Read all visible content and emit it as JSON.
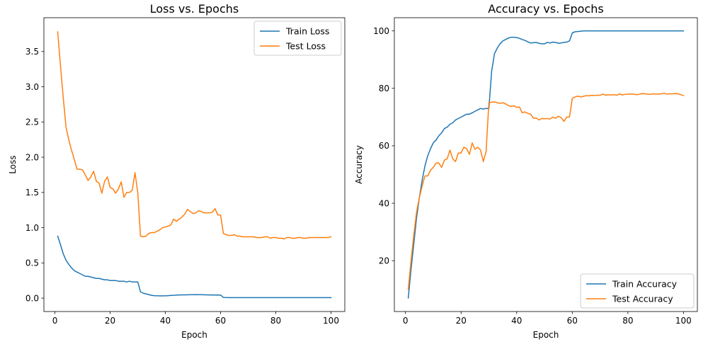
{
  "chart_data": [
    {
      "type": "line",
      "title": "Loss vs. Epochs",
      "xlabel": "Epoch",
      "ylabel": "Loss",
      "xlim": [
        -4,
        105
      ],
      "ylim": [
        -0.19,
        3.98
      ],
      "xticks": [
        0,
        20,
        40,
        60,
        80,
        100
      ],
      "yticks": [
        0.0,
        0.5,
        1.0,
        1.5,
        2.0,
        2.5,
        3.0,
        3.5
      ],
      "ytick_labels": [
        "0.0",
        "0.5",
        "1.0",
        "1.5",
        "2.0",
        "2.5",
        "3.0",
        "3.5"
      ],
      "legend_position": "top-right",
      "grid": false,
      "series": [
        {
          "name": "Train Loss",
          "color": "#1f77b4",
          "x": [
            1,
            2,
            3,
            4,
            5,
            6,
            7,
            8,
            9,
            10,
            11,
            12,
            13,
            14,
            15,
            16,
            17,
            18,
            19,
            20,
            21,
            22,
            23,
            24,
            25,
            26,
            27,
            28,
            29,
            30,
            31,
            32,
            33,
            34,
            35,
            36,
            37,
            38,
            39,
            40,
            41,
            42,
            43,
            44,
            45,
            46,
            47,
            48,
            49,
            50,
            51,
            52,
            53,
            54,
            55,
            56,
            57,
            58,
            59,
            60,
            61,
            62,
            63,
            64,
            65,
            66,
            67,
            68,
            69,
            70,
            71,
            72,
            73,
            74,
            75,
            76,
            77,
            78,
            79,
            80,
            81,
            82,
            83,
            84,
            85,
            86,
            87,
            88,
            89,
            90,
            91,
            92,
            93,
            94,
            95,
            96,
            97,
            98,
            99,
            100
          ],
          "y": [
            0.88,
            0.76,
            0.63,
            0.54,
            0.48,
            0.43,
            0.39,
            0.37,
            0.35,
            0.33,
            0.31,
            0.31,
            0.3,
            0.29,
            0.28,
            0.28,
            0.27,
            0.26,
            0.26,
            0.25,
            0.25,
            0.25,
            0.24,
            0.24,
            0.24,
            0.23,
            0.24,
            0.23,
            0.23,
            0.23,
            0.09,
            0.07,
            0.06,
            0.05,
            0.04,
            0.035,
            0.033,
            0.032,
            0.032,
            0.033,
            0.035,
            0.038,
            0.04,
            0.043,
            0.045,
            0.046,
            0.046,
            0.047,
            0.048,
            0.049,
            0.05,
            0.049,
            0.048,
            0.047,
            0.046,
            0.045,
            0.046,
            0.044,
            0.045,
            0.044,
            0.01,
            0.008,
            0.007,
            0.007,
            0.007,
            0.007,
            0.007,
            0.007,
            0.007,
            0.007,
            0.007,
            0.007,
            0.007,
            0.007,
            0.007,
            0.007,
            0.007,
            0.007,
            0.007,
            0.007,
            0.007,
            0.007,
            0.007,
            0.007,
            0.007,
            0.007,
            0.007,
            0.007,
            0.007,
            0.007,
            0.007,
            0.007,
            0.007,
            0.007,
            0.007,
            0.007,
            0.007,
            0.007,
            0.007,
            0.007
          ]
        },
        {
          "name": "Test Loss",
          "color": "#ff7f0e",
          "x": [
            1,
            2,
            3,
            4,
            5,
            6,
            7,
            8,
            9,
            10,
            11,
            12,
            13,
            14,
            15,
            16,
            17,
            18,
            19,
            20,
            21,
            22,
            23,
            24,
            25,
            26,
            27,
            28,
            29,
            30,
            31,
            32,
            33,
            34,
            35,
            36,
            37,
            38,
            39,
            40,
            41,
            42,
            43,
            44,
            45,
            46,
            47,
            48,
            49,
            50,
            51,
            52,
            53,
            54,
            55,
            56,
            57,
            58,
            59,
            60,
            61,
            62,
            63,
            64,
            65,
            66,
            67,
            68,
            69,
            70,
            71,
            72,
            73,
            74,
            75,
            76,
            77,
            78,
            79,
            80,
            81,
            82,
            83,
            84,
            85,
            86,
            87,
            88,
            89,
            90,
            91,
            92,
            93,
            94,
            95,
            96,
            97,
            98,
            99,
            100
          ],
          "y": [
            3.78,
            3.3,
            2.85,
            2.43,
            2.25,
            2.1,
            1.97,
            1.83,
            1.83,
            1.82,
            1.75,
            1.67,
            1.72,
            1.8,
            1.66,
            1.63,
            1.49,
            1.66,
            1.72,
            1.57,
            1.55,
            1.49,
            1.55,
            1.65,
            1.43,
            1.5,
            1.5,
            1.53,
            1.78,
            1.5,
            0.88,
            0.87,
            0.88,
            0.92,
            0.93,
            0.93,
            0.95,
            0.97,
            1.0,
            1.01,
            1.02,
            1.04,
            1.12,
            1.09,
            1.12,
            1.15,
            1.19,
            1.26,
            1.23,
            1.2,
            1.21,
            1.24,
            1.23,
            1.21,
            1.21,
            1.21,
            1.22,
            1.27,
            1.18,
            1.18,
            0.92,
            0.9,
            0.89,
            0.89,
            0.9,
            0.88,
            0.88,
            0.87,
            0.87,
            0.87,
            0.87,
            0.87,
            0.86,
            0.86,
            0.86,
            0.87,
            0.87,
            0.85,
            0.86,
            0.86,
            0.85,
            0.85,
            0.84,
            0.86,
            0.86,
            0.85,
            0.85,
            0.86,
            0.86,
            0.85,
            0.85,
            0.86,
            0.86,
            0.86,
            0.86,
            0.86,
            0.86,
            0.86,
            0.86,
            0.87
          ]
        }
      ]
    },
    {
      "type": "line",
      "title": "Accuracy vs. Epochs",
      "xlabel": "Epoch",
      "ylabel": "Accuracy",
      "xlim": [
        -4,
        105
      ],
      "ylim": [
        2.3,
        104.6
      ],
      "xticks": [
        0,
        20,
        40,
        60,
        80,
        100
      ],
      "yticks": [
        20,
        40,
        60,
        80,
        100
      ],
      "ytick_labels": [
        "20",
        "40",
        "60",
        "80",
        "100"
      ],
      "legend_position": "bottom-right",
      "grid": false,
      "series": [
        {
          "name": "Train Accuracy",
          "color": "#1f77b4",
          "x": [
            1,
            2,
            3,
            4,
            5,
            6,
            7,
            8,
            9,
            10,
            11,
            12,
            13,
            14,
            15,
            16,
            17,
            18,
            19,
            20,
            21,
            22,
            23,
            24,
            25,
            26,
            27,
            28,
            29,
            30,
            31,
            32,
            33,
            34,
            35,
            36,
            37,
            38,
            39,
            40,
            41,
            42,
            43,
            44,
            45,
            46,
            47,
            48,
            49,
            50,
            51,
            52,
            53,
            54,
            55,
            56,
            57,
            58,
            59,
            60,
            61,
            62,
            63,
            64,
            65,
            66,
            67,
            68,
            69,
            70,
            71,
            72,
            73,
            74,
            75,
            76,
            77,
            78,
            79,
            80,
            81,
            82,
            83,
            84,
            85,
            86,
            87,
            88,
            89,
            90,
            91,
            92,
            93,
            94,
            95,
            96,
            97,
            98,
            99,
            100
          ],
          "y": [
            7,
            17,
            26,
            35,
            42,
            48,
            53,
            56.5,
            59,
            61,
            62,
            63.5,
            64.5,
            66,
            66.5,
            67.5,
            68,
            69,
            69.5,
            70,
            70.5,
            71,
            71,
            71.5,
            72,
            72.5,
            73,
            72.8,
            73,
            73,
            86,
            92,
            94,
            95.5,
            96.5,
            97,
            97.5,
            97.8,
            97.8,
            97.7,
            97.4,
            97,
            96.7,
            96.2,
            95.8,
            95.9,
            96,
            95.7,
            95.5,
            95.5,
            96,
            95.8,
            96.1,
            96,
            95.7,
            95.8,
            96,
            96.1,
            96.5,
            99.3,
            99.7,
            99.8,
            99.9,
            100,
            100,
            100,
            100,
            100,
            100,
            100,
            100,
            100,
            100,
            100,
            100,
            100,
            100,
            100,
            100,
            100,
            100,
            100,
            100,
            100,
            100,
            100,
            100,
            100,
            100,
            100,
            100,
            100,
            100,
            100,
            100,
            100,
            100,
            100,
            100,
            100
          ],
          "y_dummy": null
        },
        {
          "name": "Test Accuracy",
          "color": "#ff7f0e",
          "x": [
            1,
            2,
            3,
            4,
            5,
            6,
            7,
            8,
            9,
            10,
            11,
            12,
            13,
            14,
            15,
            16,
            17,
            18,
            19,
            20,
            21,
            22,
            23,
            24,
            25,
            26,
            27,
            28,
            29,
            30,
            31,
            32,
            33,
            34,
            35,
            36,
            37,
            38,
            39,
            40,
            41,
            42,
            43,
            44,
            45,
            46,
            47,
            48,
            49,
            50,
            51,
            52,
            53,
            54,
            55,
            56,
            57,
            58,
            59,
            60,
            61,
            62,
            63,
            64,
            65,
            66,
            67,
            68,
            69,
            70,
            71,
            72,
            73,
            74,
            75,
            76,
            77,
            78,
            79,
            80,
            81,
            82,
            83,
            84,
            85,
            86,
            87,
            88,
            89,
            90,
            91,
            92,
            93,
            94,
            95,
            96,
            97,
            98,
            99,
            100
          ],
          "y": [
            10,
            20,
            29,
            37,
            42,
            46,
            49.5,
            49.5,
            51.5,
            52.5,
            54,
            54,
            52.5,
            55,
            55.5,
            58.5,
            55.5,
            54.5,
            57.5,
            57.5,
            59.5,
            59,
            57,
            61,
            58.8,
            59.5,
            58.5,
            54.5,
            58,
            75,
            75.2,
            75.3,
            75,
            74.8,
            75,
            74.6,
            74,
            73.7,
            73.9,
            73.4,
            73.5,
            71.5,
            71.8,
            71.3,
            71,
            69.6,
            69.7,
            69,
            69.5,
            69.4,
            69.5,
            69.3,
            70,
            69.6,
            70.3,
            69.8,
            68.5,
            70,
            70,
            76.5,
            77,
            77.3,
            77,
            77.2,
            77.5,
            77.4,
            77.6,
            77.5,
            77.6,
            77.6,
            78,
            77.6,
            77.8,
            77.7,
            77.8,
            77.6,
            78.1,
            77.7,
            77.9,
            78,
            78,
            78,
            77.8,
            77.9,
            78.2,
            78.1,
            78,
            77.9,
            78.1,
            78,
            78,
            78.1,
            78.3,
            78,
            78.1,
            78.1,
            78.2,
            78.1,
            77.8,
            77.5
          ]
        }
      ]
    }
  ]
}
